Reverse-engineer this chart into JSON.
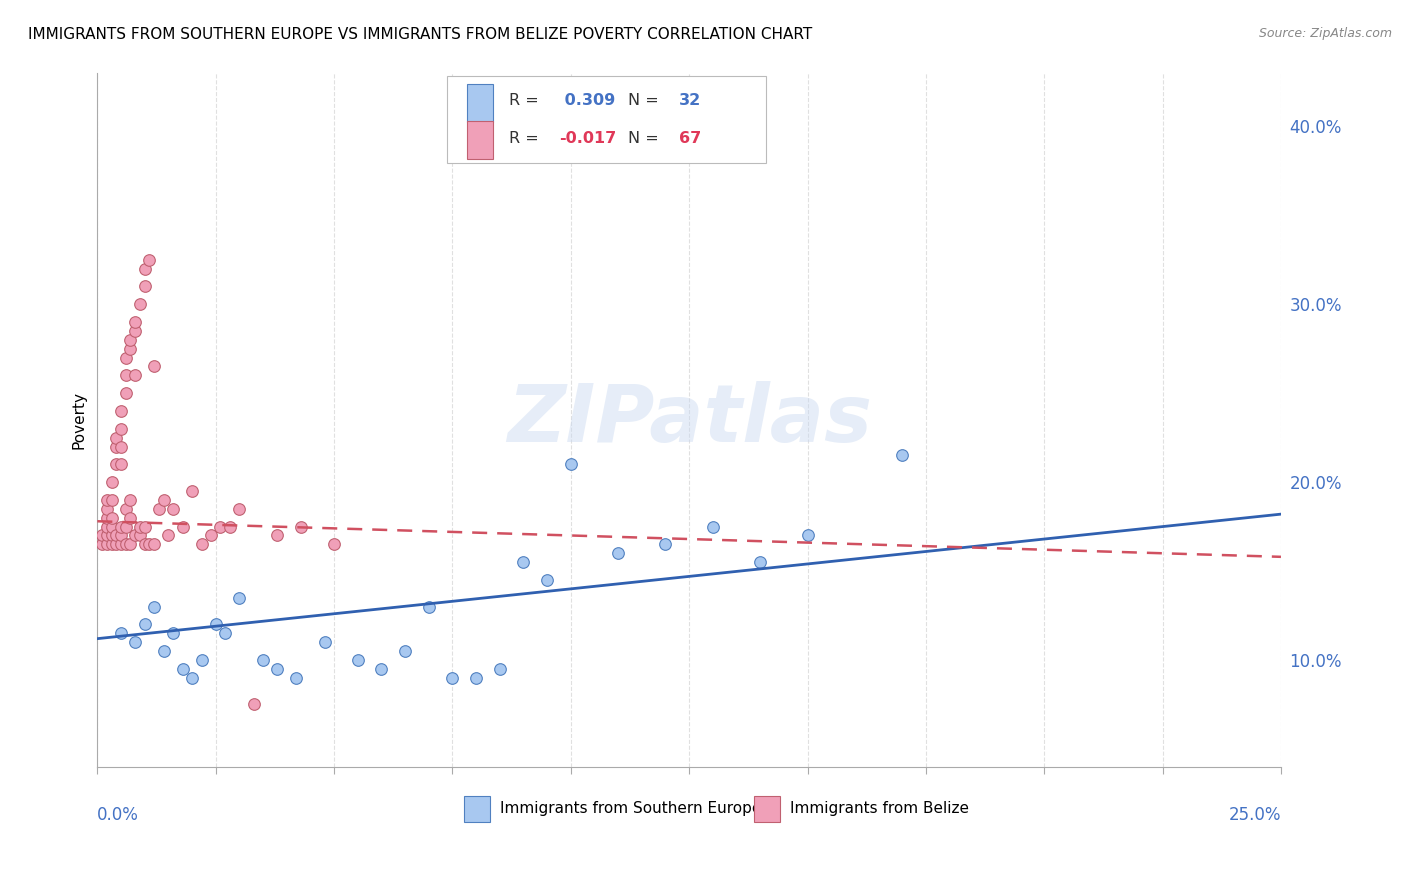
{
  "title": "IMMIGRANTS FROM SOUTHERN EUROPE VS IMMIGRANTS FROM BELIZE POVERTY CORRELATION CHART",
  "source": "Source: ZipAtlas.com",
  "ylabel": "Poverty",
  "xlim": [
    0.0,
    0.25
  ],
  "ylim": [
    0.04,
    0.43
  ],
  "ytick_vals": [
    0.1,
    0.2,
    0.3,
    0.4
  ],
  "legend1_R": "0.309",
  "legend1_N": "32",
  "legend2_R": "-0.017",
  "legend2_N": "67",
  "blue_color": "#A8C8F0",
  "blue_edge": "#5080C0",
  "pink_color": "#F0A0B8",
  "pink_edge": "#C06070",
  "trendline_blue": "#3060B0",
  "trendline_pink": "#D05060",
  "blue_scatter_x": [
    0.005,
    0.008,
    0.01,
    0.012,
    0.014,
    0.016,
    0.018,
    0.02,
    0.022,
    0.025,
    0.027,
    0.03,
    0.035,
    0.038,
    0.042,
    0.048,
    0.055,
    0.06,
    0.065,
    0.07,
    0.075,
    0.08,
    0.085,
    0.09,
    0.095,
    0.1,
    0.11,
    0.12,
    0.13,
    0.14,
    0.15,
    0.17
  ],
  "blue_scatter_y": [
    0.115,
    0.11,
    0.12,
    0.13,
    0.105,
    0.115,
    0.095,
    0.09,
    0.1,
    0.12,
    0.115,
    0.135,
    0.1,
    0.095,
    0.09,
    0.11,
    0.1,
    0.095,
    0.105,
    0.13,
    0.09,
    0.09,
    0.095,
    0.155,
    0.145,
    0.21,
    0.16,
    0.165,
    0.175,
    0.155,
    0.17,
    0.215
  ],
  "pink_scatter_x": [
    0.001,
    0.001,
    0.002,
    0.002,
    0.002,
    0.002,
    0.002,
    0.002,
    0.003,
    0.003,
    0.003,
    0.003,
    0.003,
    0.003,
    0.004,
    0.004,
    0.004,
    0.004,
    0.004,
    0.005,
    0.005,
    0.005,
    0.005,
    0.005,
    0.005,
    0.005,
    0.006,
    0.006,
    0.006,
    0.006,
    0.006,
    0.006,
    0.007,
    0.007,
    0.007,
    0.007,
    0.007,
    0.008,
    0.008,
    0.008,
    0.008,
    0.009,
    0.009,
    0.009,
    0.01,
    0.01,
    0.01,
    0.01,
    0.011,
    0.011,
    0.012,
    0.012,
    0.013,
    0.014,
    0.015,
    0.016,
    0.018,
    0.02,
    0.022,
    0.024,
    0.026,
    0.028,
    0.03,
    0.033,
    0.038,
    0.043,
    0.05
  ],
  "pink_scatter_y": [
    0.165,
    0.17,
    0.165,
    0.17,
    0.175,
    0.18,
    0.185,
    0.19,
    0.165,
    0.17,
    0.175,
    0.18,
    0.19,
    0.2,
    0.165,
    0.17,
    0.21,
    0.22,
    0.225,
    0.165,
    0.17,
    0.175,
    0.21,
    0.22,
    0.23,
    0.24,
    0.165,
    0.175,
    0.185,
    0.25,
    0.26,
    0.27,
    0.165,
    0.18,
    0.19,
    0.275,
    0.28,
    0.17,
    0.26,
    0.285,
    0.29,
    0.17,
    0.175,
    0.3,
    0.165,
    0.175,
    0.31,
    0.32,
    0.165,
    0.325,
    0.165,
    0.265,
    0.185,
    0.19,
    0.17,
    0.185,
    0.175,
    0.195,
    0.165,
    0.17,
    0.175,
    0.175,
    0.185,
    0.075,
    0.17,
    0.175,
    0.165
  ],
  "blue_trend_x": [
    0.0,
    0.25
  ],
  "blue_trend_y": [
    0.112,
    0.182
  ],
  "pink_trend_x": [
    0.0,
    0.25
  ],
  "pink_trend_y": [
    0.178,
    0.158
  ],
  "watermark": "ZIPatlas",
  "bg": "#ffffff",
  "grid_color": "#e0e0e0",
  "grid_style": "--"
}
